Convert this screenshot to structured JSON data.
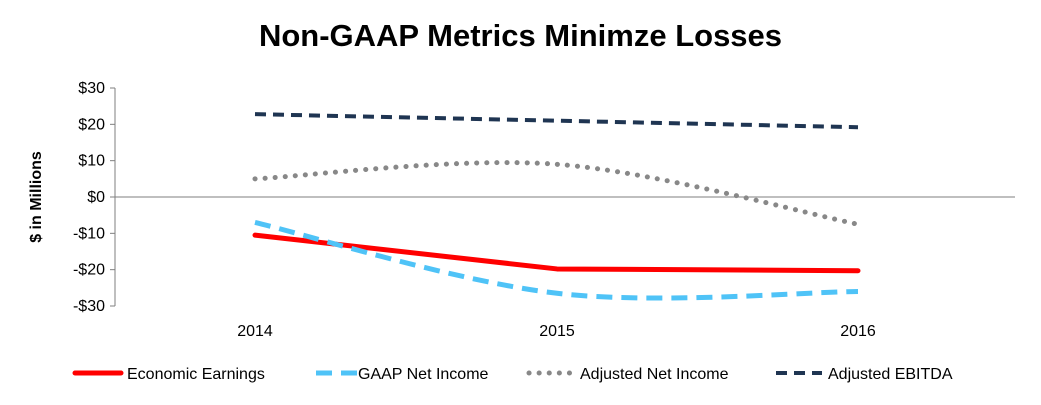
{
  "chart_data": {
    "type": "line",
    "title": "Non-GAAP Metrics Minimze Losses",
    "ylabel": "$ in Millions",
    "xlabel": "",
    "categories": [
      "2014",
      "2015",
      "2016"
    ],
    "ylim": [
      -30,
      30
    ],
    "yticks": [
      30,
      20,
      10,
      0,
      -10,
      -20,
      -30
    ],
    "ytick_labels": [
      "$30",
      "$20",
      "$10",
      "$0",
      "-$10",
      "-$20",
      "-$30"
    ],
    "grid": false,
    "legend_position": "bottom",
    "series": [
      {
        "name": "Economic Earnings",
        "values": [
          -10.5,
          -19.8,
          -20.3
        ],
        "color": "#ff0000",
        "style": "solid",
        "shape": "straight"
      },
      {
        "name": "GAAP Net Income",
        "values": [
          -7,
          -26.5,
          -26
        ],
        "color": "#4fc3f7",
        "style": "dashed",
        "shape": "smooth"
      },
      {
        "name": "Adjusted Net Income",
        "values": [
          5,
          9,
          -7.5
        ],
        "color": "#888888",
        "style": "dotted",
        "shape": "smooth"
      },
      {
        "name": "Adjusted EBITDA",
        "values": [
          22.8,
          21,
          19.2
        ],
        "color": "#1f3552",
        "style": "dashed-dark",
        "shape": "straight"
      }
    ]
  }
}
